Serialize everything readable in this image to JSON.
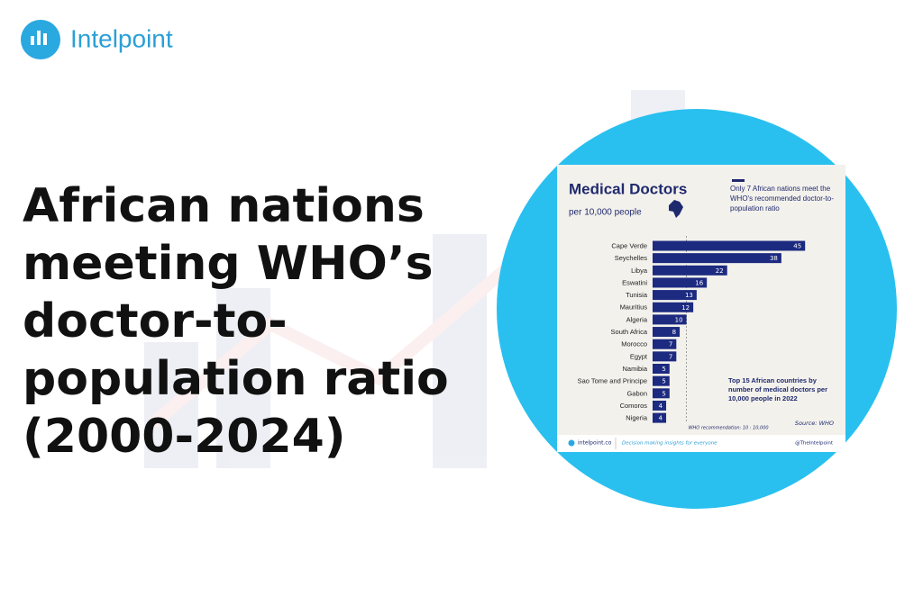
{
  "logo": "Intelpoint",
  "headline": [
    "African nations",
    "meeting WHO’s",
    "doctor-to-",
    "population ratio",
    "(2000-2024)"
  ],
  "chart_data": {
    "type": "bar",
    "orientation": "horizontal",
    "title": "Medical Doctors",
    "subtitle": "per 10,000 people",
    "note": "Only 7 African nations meet the WHO's recommended doctor-to-population ratio",
    "caption": "Top 15 African countries by number of medical doctors per 10,000 people in 2022",
    "source": "Source: WHO",
    "threshold": 10,
    "threshold_label": "WHO recommendation: 10 : 10,000",
    "categories": [
      "Cape Verde",
      "Seychelles",
      "Libya",
      "Eswatini",
      "Tunisia",
      "Mauritius",
      "Algeria",
      "South Africa",
      "Morocco",
      "Egypt",
      "Namibia",
      "Sao Tome and Principe",
      "Gabon",
      "Comoros",
      "Nigeria"
    ],
    "values": [
      45,
      38,
      22,
      16,
      13,
      12,
      10,
      8,
      7,
      7,
      5,
      5,
      5,
      4,
      4
    ],
    "color": "#1c2a80",
    "footer": {
      "site": "intelpoint.co",
      "tagline": "Decision making insights for everyone",
      "handle": "@TheIntelpoint"
    }
  }
}
